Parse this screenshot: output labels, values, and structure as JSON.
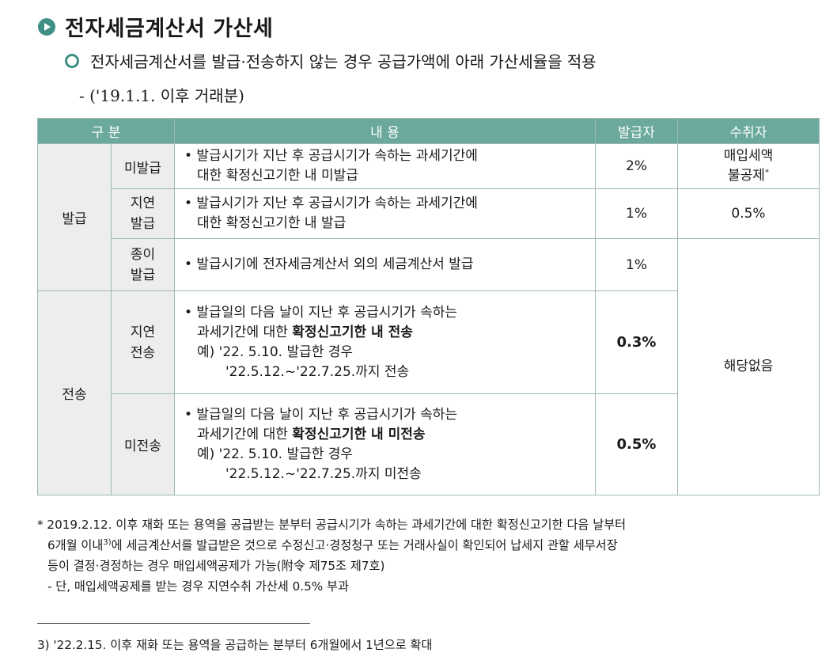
{
  "title": "전자세금계산서 가산세",
  "subtitle": "전자세금계산서를 발급·전송하지 않는 경우 공급가액에 아래 가산세율을 적용",
  "subtitle2": "- ('19.1.1. 이후 거래분)",
  "table": {
    "headers": {
      "category": "구 분",
      "content": "내 용",
      "issuer": "발급자",
      "receiver": "수취자"
    },
    "group_issue": "발급",
    "group_transmit": "전송",
    "rows": [
      {
        "sub": "미발급",
        "line1": "• 발급시기가 지난 후 공급시기가 속하는 과세기간에",
        "line2": "대한 확정신고기한 내 미발급",
        "issuer_rate": "2%",
        "receiver_line1": "매입세액",
        "receiver_line2": "불공제",
        "receiver_mark": "*"
      },
      {
        "sub_line1": "지연",
        "sub_line2": "발급",
        "line1": "• 발급시기가 지난 후 공급시기가 속하는 과세기간에",
        "line2": "대한 확정신고기한 내 발급",
        "issuer_rate": "1%",
        "receiver": "0.5%"
      },
      {
        "sub_line1": "종이",
        "sub_line2": "발급",
        "line1": "• 발급시기에 전자세금계산서 외의 세금계산서 발급",
        "issuer_rate": "1%"
      },
      {
        "sub_line1": "지연",
        "sub_line2": "전송",
        "line1": "• 발급일의 다음 날이 지난 후 공급시기가 속하는",
        "line2_plain": "과세기간에 대한 ",
        "line2_bold": "확정신고기한 내 전송",
        "line3": "예) '22. 5.10. 발급한 경우",
        "line4": "'22.5.12.~'22.7.25.까지 전송",
        "issuer_rate": "0.3%"
      },
      {
        "sub": "미전송",
        "line1": "• 발급일의 다음 날이 지난 후 공급시기가 속하는",
        "line2_plain": "과세기간에 대한 ",
        "line2_bold": "확정신고기한 내 미전송",
        "line3": "예) '22. 5.10. 발급한 경우",
        "line4": "'22.5.12.~'22.7.25.까지 미전송",
        "issuer_rate": "0.5%"
      }
    ],
    "receiver_na": "해당없음"
  },
  "footnote": {
    "line1": "* 2019.2.12. 이후 재화 또는 용역을 공급받는 분부터 공급시기가 속하는 과세기간에 대한 확정신고기한 다음 날부터",
    "line2_a": "6개월 이내",
    "line2_sup": "3)",
    "line2_b": "에 세금계산서를 발급받은 것으로 수정신고·경정청구 또는 거래사실이 확인되어 납세지 관할 세무서장",
    "line3": "등이 결정·경정하는 경우 매입세액공제가 가능(附令 제75조 제7호)",
    "line4": "- 단, 매입세액공제를 받는 경우 지연수취 가산세 0.5% 부과"
  },
  "footnote3": "3) '22.2.15. 이후 재화 또는 용역을 공급하는 분부터 6개월에서 1년으로 확대"
}
